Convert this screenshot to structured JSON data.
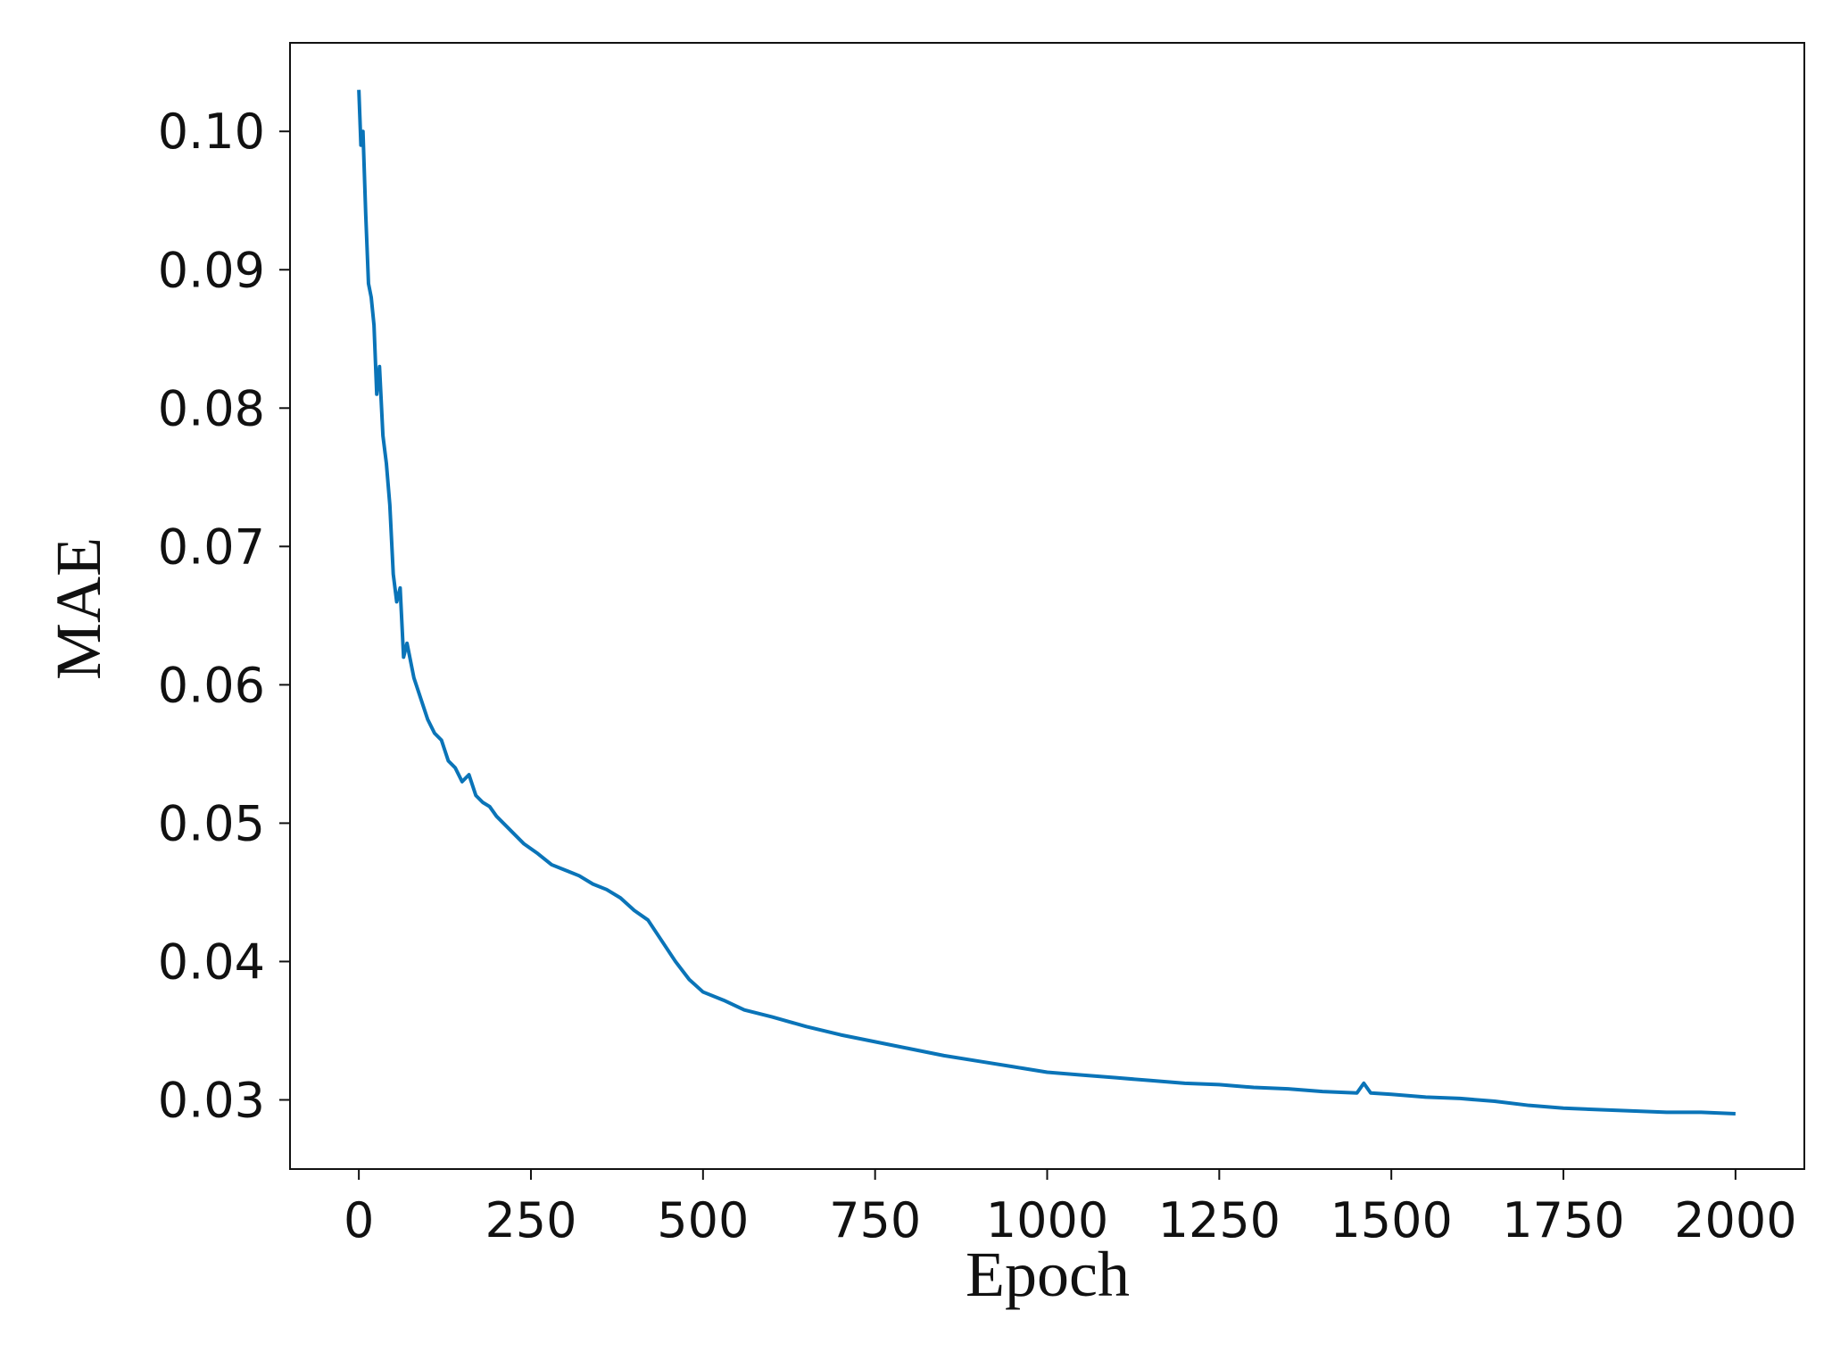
{
  "chart_data": {
    "type": "line",
    "x_label": "Epoch",
    "y_label": "MAE",
    "x": [
      0,
      3,
      6,
      10,
      14,
      18,
      22,
      26,
      30,
      35,
      40,
      45,
      50,
      55,
      60,
      65,
      70,
      80,
      90,
      100,
      110,
      120,
      130,
      140,
      150,
      160,
      170,
      180,
      190,
      200,
      220,
      240,
      260,
      280,
      300,
      320,
      340,
      360,
      380,
      400,
      420,
      440,
      460,
      480,
      500,
      530,
      560,
      600,
      650,
      700,
      750,
      800,
      850,
      900,
      950,
      1000,
      1050,
      1100,
      1150,
      1200,
      1250,
      1300,
      1350,
      1400,
      1450,
      1460,
      1470,
      1500,
      1550,
      1600,
      1650,
      1700,
      1750,
      1800,
      1850,
      1900,
      1950,
      2000
    ],
    "series": [
      {
        "color": "#0a74b8",
        "values": [
          0.103,
          0.099,
          0.1,
          0.094,
          0.089,
          0.088,
          0.086,
          0.081,
          0.083,
          0.078,
          0.076,
          0.073,
          0.068,
          0.066,
          0.067,
          0.062,
          0.063,
          0.0605,
          0.059,
          0.0575,
          0.0565,
          0.056,
          0.0545,
          0.054,
          0.053,
          0.0535,
          0.052,
          0.0515,
          0.0512,
          0.0505,
          0.0495,
          0.0485,
          0.0478,
          0.047,
          0.0466,
          0.0462,
          0.0456,
          0.0452,
          0.0446,
          0.0437,
          0.043,
          0.0415,
          0.04,
          0.0387,
          0.0378,
          0.0372,
          0.0365,
          0.036,
          0.0353,
          0.0347,
          0.0342,
          0.0337,
          0.0332,
          0.0328,
          0.0324,
          0.032,
          0.0318,
          0.0316,
          0.0314,
          0.0312,
          0.0311,
          0.0309,
          0.0308,
          0.0306,
          0.0305,
          0.0312,
          0.0305,
          0.0304,
          0.0302,
          0.0301,
          0.0299,
          0.0296,
          0.0294,
          0.0293,
          0.0292,
          0.0291,
          0.0291,
          0.029
        ]
      }
    ],
    "xlim": [
      -100,
      2100
    ],
    "xticks": [
      0,
      250,
      500,
      750,
      1000,
      1250,
      1500,
      1750,
      2000
    ],
    "ylim": [
      0.025,
      0.1064
    ],
    "yticks": [
      0.03,
      0.04,
      0.05,
      0.06,
      0.07,
      0.08,
      0.09,
      {
        "value": 0.1,
        "label": "0.10"
      }
    ],
    "grid": false
  }
}
